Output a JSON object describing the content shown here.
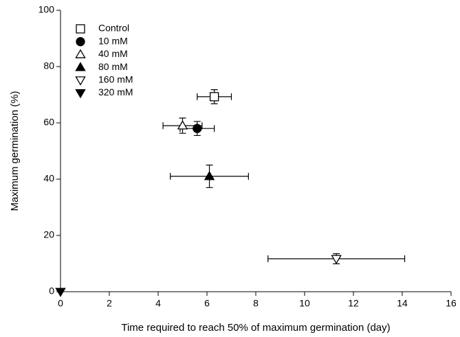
{
  "chart_data": {
    "type": "scatter",
    "xlabel": "Time required to reach 50% of maximum germination (day)",
    "ylabel": "Maximum germination (%)",
    "xlim": [
      0,
      16
    ],
    "xticks": [
      0,
      2,
      4,
      6,
      8,
      10,
      12,
      14,
      16
    ],
    "ylim": [
      0,
      100
    ],
    "yticks": [
      0,
      20,
      40,
      60,
      80,
      100
    ],
    "legend": "upper left",
    "series": [
      {
        "name": "Control",
        "color": "#000000",
        "marker": "square-open",
        "x": [
          6.3
        ],
        "values": [
          69.3
        ],
        "xerr": [
          0.7
        ],
        "yerr": [
          2.5
        ]
      },
      {
        "name": "10 mM",
        "color": "#000000",
        "marker": "circle",
        "x": [
          5.6
        ],
        "values": [
          58
        ],
        "xerr": [
          0.7
        ],
        "yerr": [
          2.5
        ]
      },
      {
        "name": "40 mM",
        "color": "#000000",
        "marker": "triangle-up-open",
        "x": [
          5.0
        ],
        "values": [
          59
        ],
        "xerr": [
          0.8
        ],
        "yerr": [
          2.7
        ]
      },
      {
        "name": "80 mM",
        "color": "#000000",
        "marker": "triangle-up",
        "x": [
          6.1
        ],
        "values": [
          41
        ],
        "xerr": [
          1.6
        ],
        "yerr": [
          4
        ]
      },
      {
        "name": "160 mM",
        "color": "#000000",
        "marker": "triangle-down-open",
        "x": [
          11.3
        ],
        "values": [
          11.7
        ],
        "xerr": [
          2.8
        ],
        "yerr": [
          1.8
        ]
      },
      {
        "name": "320 mM",
        "color": "#000000",
        "marker": "triangle-down",
        "x": [
          0
        ],
        "values": [
          0
        ],
        "xerr": [
          0
        ],
        "yerr": [
          0
        ]
      }
    ]
  }
}
